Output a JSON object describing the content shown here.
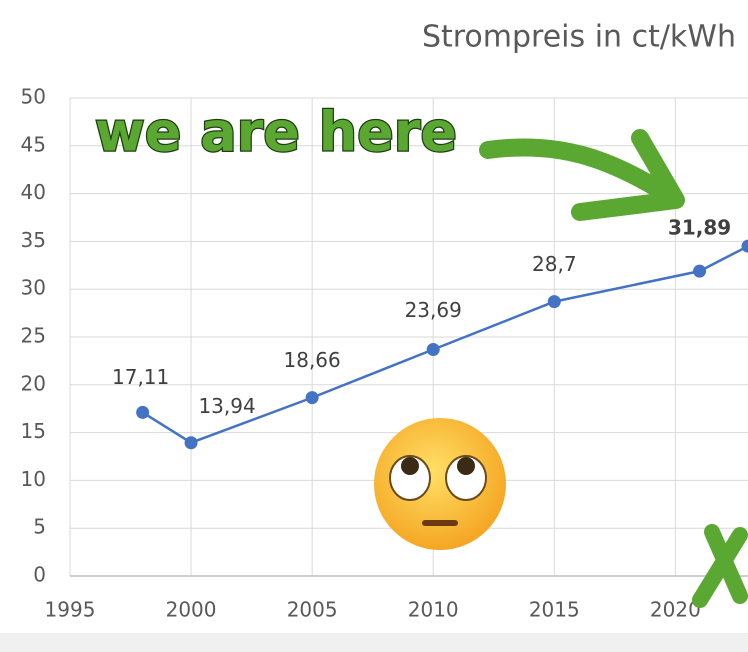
{
  "chart_data": {
    "type": "line",
    "title": "Strompreis in ct/kWh",
    "annotation": "we are here",
    "x": [
      1998,
      2000,
      2005,
      2010,
      2015,
      2021,
      2023
    ],
    "series": [
      {
        "name": "Strompreis",
        "color": "#4472c4",
        "values": [
          17.11,
          13.94,
          18.66,
          23.69,
          28.7,
          31.89,
          34.5
        ],
        "value_labels": [
          "17,11",
          "13,94",
          "18,66",
          "23,69",
          "28,7",
          "31,89",
          null
        ]
      }
    ],
    "highlight_index": 5,
    "highlight_color": "#e8262b",
    "xlim": [
      1995,
      2023
    ],
    "xticks": [
      1995,
      2000,
      2005,
      2010,
      2015,
      2020
    ],
    "ylim": [
      0,
      50
    ],
    "yticks": [
      0,
      5,
      10,
      15,
      20,
      25,
      30,
      35,
      40,
      45,
      50
    ],
    "grid": true
  }
}
